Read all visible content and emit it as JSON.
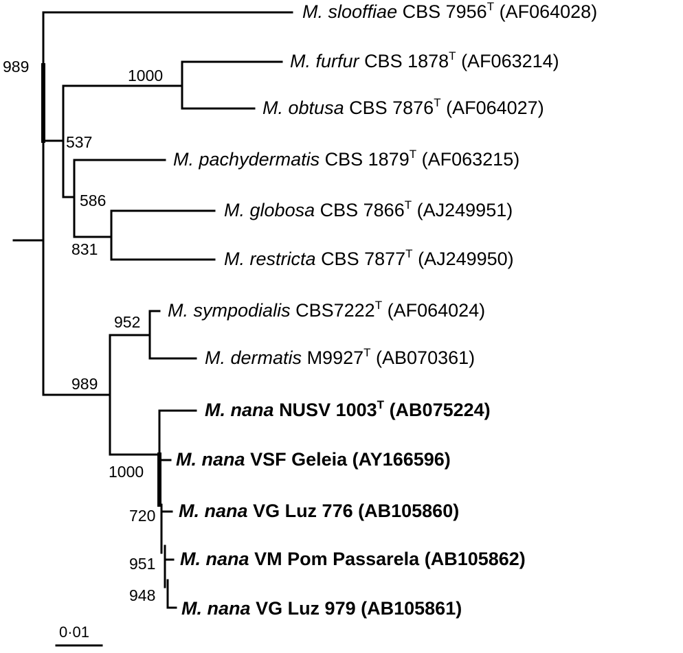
{
  "taxa": [
    {
      "id": "slooffiae",
      "genus": "M.",
      "species": "slooffiae",
      "strain": "CBS 7956",
      "type_strain": true,
      "accession": "(AF064028)",
      "bold": false
    },
    {
      "id": "furfur",
      "genus": "M.",
      "species": "furfur",
      "strain": "CBS 1878",
      "type_strain": true,
      "accession": "(AF063214)",
      "bold": false
    },
    {
      "id": "obtusa",
      "genus": "M.",
      "species": "obtusa",
      "strain": "CBS 7876",
      "type_strain": true,
      "accession": "(AF064027)",
      "bold": false
    },
    {
      "id": "pachydermatis",
      "genus": "M.",
      "species": "pachydermatis",
      "strain": "CBS 1879",
      "type_strain": true,
      "accession": "(AF063215)",
      "bold": false
    },
    {
      "id": "globosa",
      "genus": "M.",
      "species": "globosa",
      "strain": "CBS 7866",
      "type_strain": true,
      "accession": "(AJ249951)",
      "bold": false
    },
    {
      "id": "restricta",
      "genus": "M.",
      "species": "restricta",
      "strain": "CBS 7877",
      "type_strain": true,
      "accession": "(AJ249950)",
      "bold": false
    },
    {
      "id": "sympodialis",
      "genus": "M.",
      "species": "sympodialis",
      "strain": "CBS7222",
      "type_strain": true,
      "accession": "(AF064024)",
      "bold": false
    },
    {
      "id": "dermatis",
      "genus": "M.",
      "species": "dermatis",
      "strain": "M9927",
      "type_strain": true,
      "accession": "(AB070361)",
      "bold": false
    },
    {
      "id": "nana1",
      "genus": "M.",
      "species": "nana",
      "strain": "NUSV 1003",
      "type_strain": true,
      "accession": "(AB075224)",
      "bold": true
    },
    {
      "id": "nana2",
      "genus": "M.",
      "species": "nana",
      "strain": "VSF Geleia",
      "type_strain": false,
      "accession": "(AY166596)",
      "bold": true
    },
    {
      "id": "nana3",
      "genus": "M.",
      "species": "nana",
      "strain": "VG Luz 776",
      "type_strain": false,
      "accession": "(AB105860)",
      "bold": true
    },
    {
      "id": "nana4",
      "genus": "M.",
      "species": "nana",
      "strain": "VM Pom Passarela",
      "type_strain": false,
      "accession": "(AB105862)",
      "bold": true
    },
    {
      "id": "nana5",
      "genus": "M.",
      "species": "nana",
      "strain": "VG Luz 979",
      "type_strain": false,
      "accession": "(AB105861)",
      "bold": true
    }
  ],
  "type_marker": "T",
  "bootstrap": {
    "b989_top": "989",
    "b1000_furfur": "1000",
    "b537": "537",
    "b586": "586",
    "b831": "831",
    "b952": "952",
    "b989_low": "989",
    "b1000_nana": "1000",
    "b720": "720",
    "b951": "951",
    "b948": "948"
  },
  "scale_bar": {
    "label": "0·01"
  }
}
